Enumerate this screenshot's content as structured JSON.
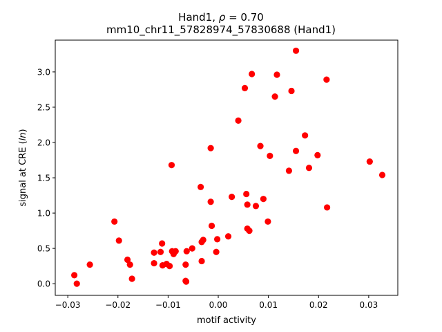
{
  "chart_data": {
    "type": "scatter",
    "title_line1_prefix": "Hand1, ",
    "title_line1_symbol": "ρ",
    "title_line1_suffix": " = 0.70",
    "title_line2": "mm10_chr11_57828974_57830688 (Hand1)",
    "xlabel": "motif activity",
    "ylabel_prefix": "signal at CRE (",
    "ylabel_italic": "ln",
    "ylabel_suffix": ")",
    "xlim": [
      -0.0325,
      0.0358
    ],
    "ylim": [
      -0.165,
      3.45
    ],
    "xticks": [
      -0.03,
      -0.02,
      -0.01,
      0.0,
      0.01,
      0.02,
      0.03
    ],
    "xtick_labels": [
      "−0.03",
      "−0.02",
      "−0.01",
      "0.00",
      "0.01",
      "0.02",
      "0.03"
    ],
    "yticks": [
      0.0,
      0.5,
      1.0,
      1.5,
      2.0,
      2.5,
      3.0
    ],
    "ytick_labels": [
      "0.0",
      "0.5",
      "1.0",
      "1.5",
      "2.0",
      "2.5",
      "3.0"
    ],
    "grid": false,
    "marker_color": "#ff0000",
    "points": [
      {
        "x": -0.0287,
        "y": 0.12
      },
      {
        "x": -0.0282,
        "y": 0.0
      },
      {
        "x": -0.0256,
        "y": 0.27
      },
      {
        "x": -0.0207,
        "y": 0.88
      },
      {
        "x": -0.0198,
        "y": 0.61
      },
      {
        "x": -0.0181,
        "y": 0.34
      },
      {
        "x": -0.0176,
        "y": 0.27
      },
      {
        "x": -0.0172,
        "y": 0.07
      },
      {
        "x": -0.0128,
        "y": 0.44
      },
      {
        "x": -0.0128,
        "y": 0.29
      },
      {
        "x": -0.0115,
        "y": 0.45
      },
      {
        "x": -0.0112,
        "y": 0.57
      },
      {
        "x": -0.0111,
        "y": 0.26
      },
      {
        "x": -0.0103,
        "y": 0.28
      },
      {
        "x": -0.0097,
        "y": 0.25
      },
      {
        "x": -0.0092,
        "y": 0.46
      },
      {
        "x": -0.0093,
        "y": 1.68
      },
      {
        "x": -0.0089,
        "y": 0.42
      },
      {
        "x": -0.0085,
        "y": 0.46
      },
      {
        "x": -0.0065,
        "y": 0.27
      },
      {
        "x": -0.0065,
        "y": 0.04
      },
      {
        "x": -0.0064,
        "y": 0.03
      },
      {
        "x": -0.0063,
        "y": 0.46
      },
      {
        "x": -0.0052,
        "y": 0.5
      },
      {
        "x": -0.0035,
        "y": 1.37
      },
      {
        "x": -0.0033,
        "y": 0.32
      },
      {
        "x": -0.0033,
        "y": 0.59
      },
      {
        "x": -0.003,
        "y": 0.62
      },
      {
        "x": -0.0015,
        "y": 1.92
      },
      {
        "x": -0.0015,
        "y": 1.16
      },
      {
        "x": -0.0013,
        "y": 0.82
      },
      {
        "x": -0.0004,
        "y": 0.45
      },
      {
        "x": -0.0002,
        "y": 0.63
      },
      {
        "x": 0.002,
        "y": 0.67
      },
      {
        "x": 0.0027,
        "y": 1.23
      },
      {
        "x": 0.004,
        "y": 2.31
      },
      {
        "x": 0.0053,
        "y": 2.77
      },
      {
        "x": 0.0056,
        "y": 1.27
      },
      {
        "x": 0.0058,
        "y": 1.12
      },
      {
        "x": 0.0058,
        "y": 0.78
      },
      {
        "x": 0.0062,
        "y": 0.75
      },
      {
        "x": 0.0067,
        "y": 2.97
      },
      {
        "x": 0.0075,
        "y": 1.1
      },
      {
        "x": 0.0084,
        "y": 1.95
      },
      {
        "x": 0.009,
        "y": 1.2
      },
      {
        "x": 0.0099,
        "y": 0.88
      },
      {
        "x": 0.0103,
        "y": 1.81
      },
      {
        "x": 0.0113,
        "y": 2.65
      },
      {
        "x": 0.0117,
        "y": 2.96
      },
      {
        "x": 0.0141,
        "y": 1.6
      },
      {
        "x": 0.0146,
        "y": 2.73
      },
      {
        "x": 0.0155,
        "y": 3.3
      },
      {
        "x": 0.0155,
        "y": 1.88
      },
      {
        "x": 0.0173,
        "y": 2.1
      },
      {
        "x": 0.0181,
        "y": 1.64
      },
      {
        "x": 0.0198,
        "y": 1.82
      },
      {
        "x": 0.0216,
        "y": 2.89
      },
      {
        "x": 0.0217,
        "y": 1.08
      },
      {
        "x": 0.0302,
        "y": 1.73
      },
      {
        "x": 0.0327,
        "y": 1.54
      }
    ]
  }
}
